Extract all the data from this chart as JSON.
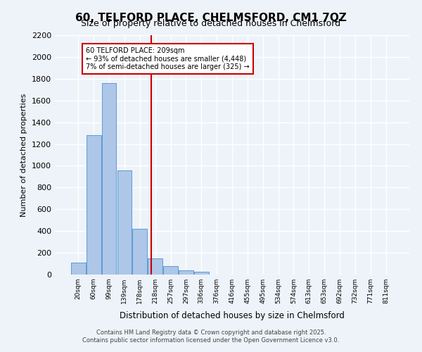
{
  "title_line1": "60, TELFORD PLACE, CHELMSFORD, CM1 7QZ",
  "title_line2": "Size of property relative to detached houses in Chelmsford",
  "xlabel": "Distribution of detached houses by size in Chelmsford",
  "ylabel": "Number of detached properties",
  "categories": [
    "20sqm",
    "60sqm",
    "99sqm",
    "139sqm",
    "178sqm",
    "218sqm",
    "257sqm",
    "297sqm",
    "336sqm",
    "376sqm",
    "416sqm",
    "455sqm",
    "495sqm",
    "534sqm",
    "574sqm",
    "613sqm",
    "653sqm",
    "692sqm",
    "732sqm",
    "771sqm",
    "811sqm"
  ],
  "bar_values": [
    110,
    1280,
    1760,
    960,
    420,
    150,
    80,
    40,
    25,
    0,
    0,
    0,
    0,
    0,
    0,
    0,
    0,
    0,
    0,
    0,
    0
  ],
  "bar_color": "#aec6e8",
  "bar_edge_color": "#5b9bd5",
  "property_label": "60 TELFORD PLACE: 209sqm",
  "annotation_line1": "← 93% of detached houses are smaller (4,448)",
  "annotation_line2": "7% of semi-detached houses are larger (325) →",
  "vline_color": "#cc0000",
  "vline_x": 4.74,
  "annotation_box_edge": "#cc0000",
  "ylim": [
    0,
    2200
  ],
  "yticks": [
    0,
    200,
    400,
    600,
    800,
    1000,
    1200,
    1400,
    1600,
    1800,
    2000,
    2200
  ],
  "footer_line1": "Contains HM Land Registry data © Crown copyright and database right 2025.",
  "footer_line2": "Contains public sector information licensed under the Open Government Licence v3.0.",
  "bg_color": "#eef3f9",
  "grid_color": "#ffffff"
}
